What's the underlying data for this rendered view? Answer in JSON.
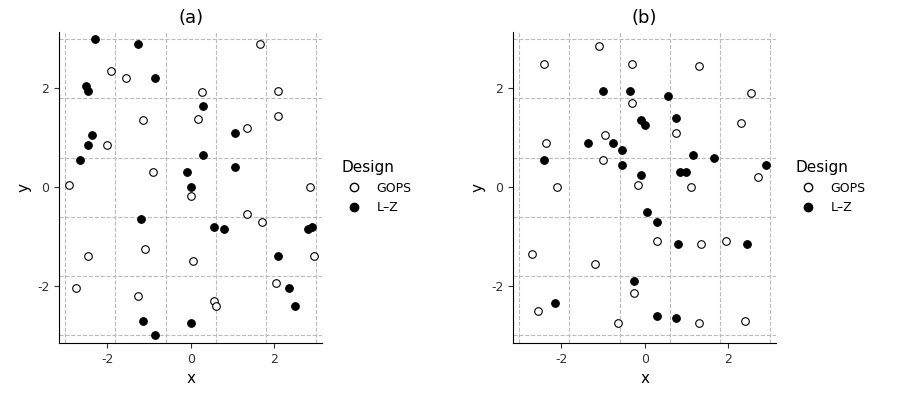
{
  "chart_data": [
    {
      "type": "scatter",
      "title": "(a)",
      "x_label": "x",
      "y_label": "y",
      "xlim": [
        -3.15,
        3.15
      ],
      "ylim": [
        -3.15,
        3.15
      ],
      "xticks": [
        -2,
        0,
        2
      ],
      "yticks": [
        -2,
        0,
        2
      ],
      "grid_lines": [
        -3,
        -1.8,
        -0.6,
        0.6,
        1.8,
        3
      ],
      "legend": "right",
      "legend_title": "Design",
      "series": [
        {
          "name": "GOPS",
          "color": "#000000",
          "marker": "open_circle",
          "x": [
            -2.9,
            -2.75,
            -2.45,
            -2.0,
            -1.9,
            -1.55,
            -1.15,
            -1.1,
            -1.25,
            -0.9,
            0.27,
            0.17,
            0.0,
            0.05,
            0.55,
            0.6,
            1.35,
            1.35,
            1.65,
            1.7,
            2.1,
            2.1,
            2.05,
            2.85,
            2.95
          ],
          "y": [
            0.05,
            -2.05,
            -1.4,
            0.85,
            2.35,
            2.2,
            1.35,
            -1.25,
            -2.2,
            0.3,
            1.93,
            1.37,
            -0.17,
            -1.5,
            -2.3,
            -2.4,
            1.2,
            -0.55,
            2.9,
            -0.7,
            1.95,
            1.45,
            -1.95,
            0.0,
            -1.4
          ]
        },
        {
          "name": "L–Z",
          "color": "#000000",
          "marker": "circle",
          "x": [
            -2.3,
            -2.5,
            -2.45,
            -2.35,
            -2.45,
            -2.65,
            -1.25,
            -0.85,
            -1.2,
            -1.15,
            -0.85,
            -0.1,
            0.0,
            0.3,
            0.3,
            0.55,
            0.8,
            1.05,
            1.05,
            0.0,
            2.1,
            2.35,
            2.5,
            2.8,
            2.9
          ],
          "y": [
            3.0,
            2.05,
            1.95,
            1.05,
            0.85,
            0.55,
            2.9,
            2.2,
            -0.65,
            -2.7,
            -3.0,
            0.3,
            0.0,
            1.65,
            0.65,
            -0.8,
            -0.85,
            1.1,
            0.4,
            -2.75,
            -1.4,
            -2.05,
            -2.4,
            -0.85,
            -0.8
          ]
        }
      ]
    },
    {
      "type": "scatter",
      "title": "(b)",
      "x_label": "x",
      "y_label": "y",
      "xlim": [
        -3.15,
        3.15
      ],
      "ylim": [
        -3.15,
        3.15
      ],
      "xticks": [
        -2,
        0,
        2
      ],
      "yticks": [
        -2,
        0,
        2
      ],
      "grid_lines": [
        -3,
        -1.8,
        -0.6,
        0.6,
        1.8,
        3
      ],
      "legend": "right",
      "legend_title": "Design",
      "series": [
        {
          "name": "GOPS",
          "color": "#000000",
          "marker": "open_circle",
          "x": [
            -2.4,
            -2.35,
            -2.1,
            -2.7,
            -2.55,
            -1.1,
            -0.95,
            -1.0,
            -0.3,
            -0.3,
            -0.15,
            0.75,
            1.3,
            1.1,
            2.3,
            2.55,
            2.7,
            -1.2,
            -0.65,
            -0.25,
            0.3,
            1.35,
            1.95,
            1.3,
            2.4
          ],
          "y": [
            2.5,
            0.9,
            0.0,
            -1.35,
            -2.5,
            2.85,
            1.05,
            0.55,
            2.5,
            1.7,
            0.05,
            1.1,
            2.45,
            0.0,
            1.3,
            1.9,
            0.2,
            -1.55,
            -2.75,
            -2.15,
            -1.1,
            -1.15,
            -1.1,
            -2.75,
            -2.7
          ]
        },
        {
          "name": "L–Z",
          "color": "#000000",
          "marker": "circle",
          "x": [
            -2.4,
            -2.15,
            -1.0,
            -1.35,
            -0.75,
            -0.55,
            -0.55,
            -0.35,
            -0.1,
            0.0,
            0.55,
            0.75,
            0.85,
            1.0,
            1.15,
            1.65,
            2.9,
            -0.1,
            0.05,
            0.3,
            -0.25,
            0.8,
            2.45,
            0.3,
            0.75
          ],
          "y": [
            0.55,
            -2.35,
            1.95,
            0.9,
            0.9,
            0.75,
            0.45,
            1.95,
            1.35,
            1.25,
            1.85,
            1.4,
            0.3,
            0.3,
            0.65,
            0.6,
            0.45,
            0.25,
            -0.5,
            -0.7,
            -1.9,
            -1.15,
            -1.15,
            -2.6,
            -2.65
          ]
        }
      ]
    }
  ]
}
